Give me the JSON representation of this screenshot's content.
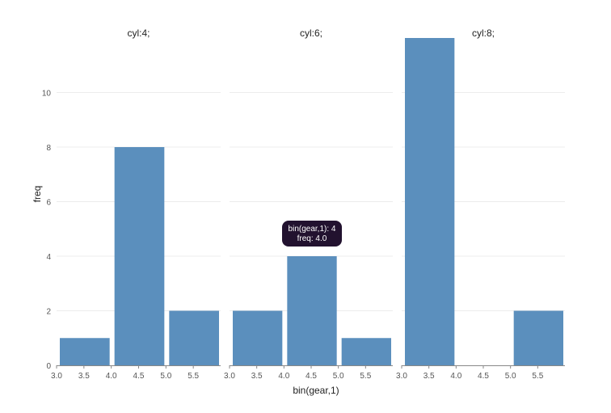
{
  "chart_data": {
    "type": "bar",
    "subtype": "faceted-histogram",
    "xlabel": "bin(gear,1)",
    "ylabel": "freq",
    "ylim": [
      0,
      12
    ],
    "yticks": [
      0,
      2,
      4,
      6,
      8,
      10
    ],
    "xlim": [
      3.0,
      6.0
    ],
    "xticks": [
      "3.0",
      "3.5",
      "4.0",
      "4.5",
      "5.0",
      "5.5"
    ],
    "grid": true,
    "bar_color": "#5b8fbd",
    "facets": [
      {
        "title": "cyl:4;",
        "bins": [
          {
            "x0": 3,
            "x1": 4,
            "freq": 1
          },
          {
            "x0": 4,
            "x1": 5,
            "freq": 8
          },
          {
            "x0": 5,
            "x1": 6,
            "freq": 2
          }
        ]
      },
      {
        "title": "cyl:6;",
        "bins": [
          {
            "x0": 3,
            "x1": 4,
            "freq": 2
          },
          {
            "x0": 4,
            "x1": 5,
            "freq": 4
          },
          {
            "x0": 5,
            "x1": 6,
            "freq": 1
          }
        ]
      },
      {
        "title": "cyl:8;",
        "bins": [
          {
            "x0": 3,
            "x1": 4,
            "freq": 12
          },
          {
            "x0": 4,
            "x1": 5,
            "freq": 0
          },
          {
            "x0": 5,
            "x1": 6,
            "freq": 2
          }
        ]
      }
    ],
    "tooltip": {
      "facet": 1,
      "bin": 1,
      "line1": "bin(gear,1): 4",
      "line2": "freq: 4.0",
      "background": "#22122f"
    }
  }
}
